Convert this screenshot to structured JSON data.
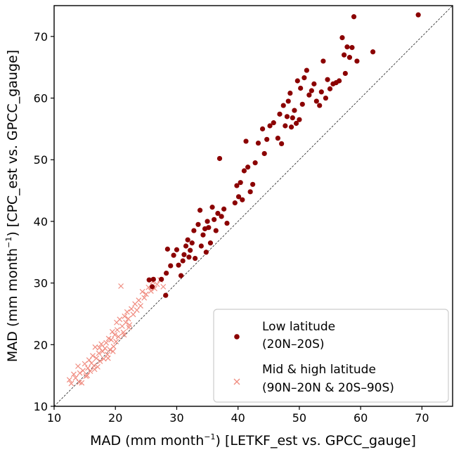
{
  "chart_data": {
    "type": "scatter",
    "xlabel": {
      "pre": "MAD (mm month",
      "sup": "−1",
      "post": ") [LETKF_est vs. GPCC_gauge]"
    },
    "ylabel": {
      "pre": "MAD (mm month",
      "sup": "−1",
      "post": ") [CPC_est vs. GPCC_gauge]"
    },
    "xlim": [
      10,
      75
    ],
    "ylim": [
      10,
      75
    ],
    "xticks": [
      "10",
      "20",
      "30",
      "40",
      "50",
      "60",
      "70"
    ],
    "yticks": [
      "10",
      "20",
      "30",
      "40",
      "50",
      "60",
      "70"
    ],
    "identity_line": true,
    "grid": false,
    "legend_position": "lower-right",
    "series": [
      {
        "name": "Low latitude",
        "name_line2": "(20N–20S)",
        "marker": "circle",
        "color": "#8b0000",
        "points": [
          [
            25.5,
            30.5
          ],
          [
            26.2,
            30.6
          ],
          [
            26.0,
            29.4
          ],
          [
            27.5,
            30.6
          ],
          [
            28.2,
            28.0
          ],
          [
            28.3,
            31.6
          ],
          [
            28.5,
            35.5
          ],
          [
            29.0,
            32.8
          ],
          [
            29.5,
            34.5
          ],
          [
            30.0,
            35.4
          ],
          [
            30.3,
            32.9
          ],
          [
            30.7,
            31.2
          ],
          [
            31.0,
            33.6
          ],
          [
            31.2,
            34.6
          ],
          [
            31.5,
            36.0
          ],
          [
            31.8,
            37.0
          ],
          [
            32.0,
            34.2
          ],
          [
            32.2,
            35.3
          ],
          [
            32.5,
            36.5
          ],
          [
            32.8,
            38.5
          ],
          [
            33.0,
            34.0
          ],
          [
            33.5,
            39.5
          ],
          [
            33.8,
            41.8
          ],
          [
            34.0,
            36.0
          ],
          [
            34.3,
            37.8
          ],
          [
            34.6,
            38.8
          ],
          [
            34.8,
            35.0
          ],
          [
            35.0,
            40.0
          ],
          [
            35.2,
            39.0
          ],
          [
            35.5,
            36.5
          ],
          [
            35.8,
            42.3
          ],
          [
            36.1,
            40.3
          ],
          [
            36.4,
            38.5
          ],
          [
            36.7,
            41.3
          ],
          [
            37.0,
            50.2
          ],
          [
            37.3,
            40.8
          ],
          [
            37.7,
            42.0
          ],
          [
            38.2,
            39.7
          ],
          [
            39.5,
            43.0
          ],
          [
            39.8,
            45.8
          ],
          [
            40.1,
            44.0
          ],
          [
            40.4,
            46.3
          ],
          [
            40.7,
            43.5
          ],
          [
            41.0,
            48.2
          ],
          [
            41.3,
            53.0
          ],
          [
            41.6,
            48.8
          ],
          [
            42.0,
            44.8
          ],
          [
            42.4,
            46.0
          ],
          [
            42.8,
            49.5
          ],
          [
            43.3,
            52.7
          ],
          [
            44.0,
            55.0
          ],
          [
            44.3,
            51.0
          ],
          [
            44.7,
            53.3
          ],
          [
            45.2,
            55.5
          ],
          [
            45.8,
            56.0
          ],
          [
            46.5,
            53.5
          ],
          [
            46.8,
            57.4
          ],
          [
            47.1,
            52.6
          ],
          [
            47.4,
            58.8
          ],
          [
            47.7,
            55.5
          ],
          [
            48.0,
            57.0
          ],
          [
            48.2,
            59.5
          ],
          [
            48.5,
            60.8
          ],
          [
            48.7,
            55.3
          ],
          [
            48.9,
            56.8
          ],
          [
            49.2,
            58.0
          ],
          [
            49.5,
            55.9
          ],
          [
            49.7,
            62.8
          ],
          [
            50.0,
            56.5
          ],
          [
            50.2,
            61.6
          ],
          [
            50.5,
            59.0
          ],
          [
            50.8,
            63.3
          ],
          [
            51.2,
            64.5
          ],
          [
            51.6,
            60.5
          ],
          [
            52.0,
            61.2
          ],
          [
            52.4,
            62.3
          ],
          [
            52.8,
            59.5
          ],
          [
            53.3,
            58.8
          ],
          [
            53.6,
            61.0
          ],
          [
            53.9,
            66.0
          ],
          [
            54.3,
            60.0
          ],
          [
            54.6,
            63.0
          ],
          [
            55.0,
            61.5
          ],
          [
            55.5,
            62.3
          ],
          [
            56.0,
            62.5
          ],
          [
            56.5,
            62.8
          ],
          [
            57.0,
            69.8
          ],
          [
            57.3,
            67.0
          ],
          [
            57.5,
            64.0
          ],
          [
            57.8,
            68.3
          ],
          [
            58.2,
            66.6
          ],
          [
            58.6,
            68.2
          ],
          [
            58.9,
            73.2
          ],
          [
            59.4,
            66.0
          ],
          [
            62.0,
            67.5
          ],
          [
            69.4,
            73.5
          ]
        ]
      },
      {
        "name": "Mid & high latitude",
        "name_line2": "(90N–20N & 20S–90S)",
        "marker": "x",
        "color": "#f08c80",
        "points": [
          [
            12.5,
            14.3
          ],
          [
            12.8,
            13.7
          ],
          [
            13.2,
            15.2
          ],
          [
            13.5,
            14.6
          ],
          [
            13.9,
            16.5
          ],
          [
            14.2,
            15.4
          ],
          [
            14.5,
            13.8
          ],
          [
            14.7,
            15.8
          ],
          [
            15.0,
            16.9
          ],
          [
            15.2,
            14.9
          ],
          [
            15.5,
            16.2
          ],
          [
            15.7,
            17.5
          ],
          [
            15.9,
            15.7
          ],
          [
            16.1,
            17.0
          ],
          [
            16.3,
            18.2
          ],
          [
            16.5,
            16.6
          ],
          [
            16.7,
            19.6
          ],
          [
            16.9,
            17.8
          ],
          [
            17.1,
            16.4
          ],
          [
            17.3,
            18.6
          ],
          [
            17.5,
            17.3
          ],
          [
            17.7,
            20.1
          ],
          [
            17.9,
            18.9
          ],
          [
            18.1,
            17.7
          ],
          [
            18.3,
            19.4
          ],
          [
            18.5,
            20.3
          ],
          [
            18.7,
            18.4
          ],
          [
            18.9,
            21.0
          ],
          [
            19.1,
            19.2
          ],
          [
            19.3,
            20.8
          ],
          [
            19.5,
            22.1
          ],
          [
            19.7,
            19.7
          ],
          [
            19.9,
            21.6
          ],
          [
            20.1,
            20.5
          ],
          [
            20.3,
            22.4
          ],
          [
            20.5,
            21.3
          ],
          [
            20.7,
            24.1
          ],
          [
            20.9,
            29.5
          ],
          [
            21.1,
            23.0
          ],
          [
            21.3,
            22.0
          ],
          [
            21.5,
            24.6
          ],
          [
            21.7,
            23.6
          ],
          [
            21.9,
            25.3
          ],
          [
            22.1,
            24.2
          ],
          [
            22.3,
            23.2
          ],
          [
            22.6,
            25.8
          ],
          [
            22.9,
            24.9
          ],
          [
            23.2,
            26.6
          ],
          [
            23.5,
            25.6
          ],
          [
            23.8,
            27.2
          ],
          [
            24.1,
            26.3
          ],
          [
            24.4,
            28.6
          ],
          [
            24.7,
            27.6
          ],
          [
            25.0,
            28.2
          ],
          [
            25.4,
            29.3
          ],
          [
            25.8,
            28.7
          ],
          [
            26.1,
            30.2
          ],
          [
            26.4,
            29.1
          ],
          [
            26.8,
            29.8
          ],
          [
            27.3,
            30.5
          ],
          [
            27.8,
            29.4
          ],
          [
            14.1,
            13.9
          ],
          [
            15.4,
            15.0
          ],
          [
            16.6,
            16.0
          ],
          [
            17.4,
            19.5
          ],
          [
            18.8,
            17.8
          ],
          [
            19.6,
            18.9
          ],
          [
            20.2,
            23.6
          ],
          [
            21.4,
            21.6
          ],
          [
            22.2,
            22.8
          ]
        ]
      }
    ]
  }
}
